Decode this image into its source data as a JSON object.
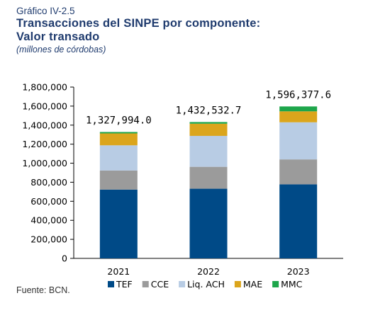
{
  "header": {
    "figure_label": "Gráfico IV-2.5",
    "title_line1": "Transacciones del SINPE por componente:",
    "title_line2": "Valor transado",
    "subtitle": "(millones de córdobas)"
  },
  "source": "Fuente: BCN.",
  "chart_data": {
    "type": "bar",
    "stacked": true,
    "categories": [
      "2021",
      "2022",
      "2023"
    ],
    "series": [
      {
        "name": "TEF",
        "color": "#004a87",
        "values": [
          723000,
          732000,
          778000
        ]
      },
      {
        "name": "CCE",
        "color": "#9b9b9b",
        "values": [
          200000,
          230000,
          262000
        ]
      },
      {
        "name": "Liq. ACH",
        "color": "#b8cce4",
        "values": [
          265000,
          325000,
          390000
        ]
      },
      {
        "name": "MAE",
        "color": "#dba51c",
        "values": [
          125000,
          128000,
          115000
        ]
      },
      {
        "name": "MMC",
        "color": "#1ea64b",
        "values": [
          14994,
          17532.7,
          51377.6
        ]
      }
    ],
    "totals": [
      "1,327,994.0",
      "1,432,532.7",
      "1,596,377.6"
    ],
    "ylim": [
      0,
      1800000
    ],
    "yticks": [
      "0",
      "200,000",
      "400,000",
      "600,000",
      "800,000",
      "1,000,000",
      "1,200,000",
      "1,400,000",
      "1,600,000",
      "1,800,000"
    ],
    "legend_position": "bottom",
    "grid": false
  }
}
